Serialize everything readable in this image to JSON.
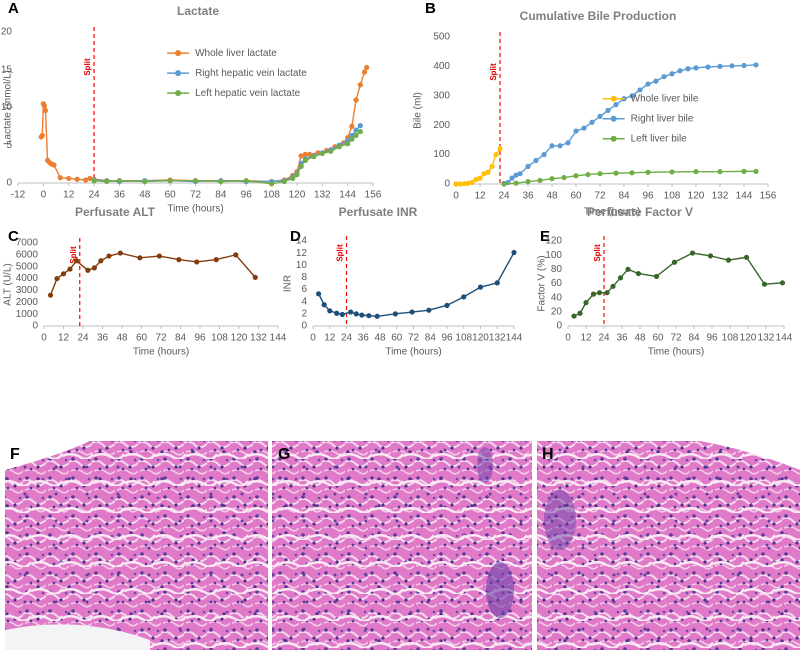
{
  "chart_data": [
    {
      "panel": "A",
      "type": "line",
      "title": "Lactate",
      "xlabel": "Time (hours)",
      "ylabel": "Lactate (mmol/L)",
      "xlim": [
        -12,
        156
      ],
      "xticks": [
        -12,
        0,
        12,
        24,
        36,
        48,
        60,
        72,
        84,
        96,
        108,
        120,
        132,
        144,
        156
      ],
      "ylim": [
        0,
        20
      ],
      "yticks": [
        0,
        5,
        10,
        15,
        20
      ],
      "annotation": "Split",
      "split_x": 24,
      "legend": "upper center",
      "series": [
        {
          "name": "Whole liver lactate",
          "color": "#ED7D31",
          "x": [
            -1,
            -0.5,
            0,
            0.5,
            1,
            2,
            3,
            4,
            5,
            8,
            12,
            16,
            20,
            22,
            24,
            30,
            36,
            48,
            60,
            72,
            84,
            96,
            108,
            114,
            118,
            120,
            122,
            124,
            126,
            130,
            134,
            138,
            142,
            144,
            146,
            148,
            150,
            152,
            153
          ],
          "values": [
            6.1,
            6.3,
            10.5,
            10.2,
            9.6,
            3.0,
            2.7,
            2.5,
            2.4,
            0.7,
            0.6,
            0.5,
            0.4,
            0.6,
            0.5,
            0.3,
            0.3,
            0.3,
            0.4,
            0.3,
            0.3,
            0.3,
            0.2,
            0.4,
            1.0,
            1.5,
            3.6,
            3.8,
            3.8,
            4.0,
            4.3,
            4.8,
            5.3,
            6.0,
            7.5,
            11.0,
            13.0,
            14.7,
            15.3
          ]
        },
        {
          "name": "Right hepatic vein lactate",
          "color": "#5B9BD5",
          "x": [
            24,
            30,
            36,
            48,
            60,
            72,
            84,
            96,
            108,
            114,
            118,
            120,
            122,
            124,
            128,
            132,
            136,
            140,
            144,
            146,
            148,
            150
          ],
          "values": [
            0.4,
            0.3,
            0.2,
            0.3,
            0.3,
            0.2,
            0.3,
            0.2,
            0.2,
            0.3,
            0.8,
            1.2,
            2.6,
            3.2,
            3.6,
            4.0,
            4.4,
            5.0,
            5.6,
            6.3,
            7.0,
            7.6
          ]
        },
        {
          "name": "Left hepatic vein lactate",
          "color": "#70AD47",
          "x": [
            24,
            30,
            36,
            48,
            60,
            72,
            84,
            96,
            108,
            114,
            118,
            120,
            122,
            124,
            128,
            132,
            136,
            140,
            144,
            146,
            148,
            150
          ],
          "values": [
            0.3,
            0.2,
            0.3,
            0.2,
            0.3,
            0.3,
            0.2,
            0.3,
            -0.1,
            0.2,
            0.6,
            1.1,
            2.2,
            3.0,
            3.5,
            3.9,
            4.2,
            4.8,
            5.2,
            5.8,
            6.3,
            6.8
          ]
        }
      ]
    },
    {
      "panel": "B",
      "type": "line",
      "title": "Cumulative Bile Production",
      "xlabel": "Time (hours)",
      "ylabel": "Bile (ml)",
      "xlim": [
        0,
        156
      ],
      "xticks": [
        0,
        12,
        24,
        36,
        48,
        60,
        72,
        84,
        96,
        108,
        120,
        132,
        144,
        156
      ],
      "ylim": [
        0,
        500
      ],
      "yticks": [
        0,
        100,
        200,
        300,
        400,
        500
      ],
      "annotation": "Split",
      "split_x": 22,
      "legend": "center right",
      "series": [
        {
          "name": "Whole liver bile",
          "color": "#FFC000",
          "x": [
            0,
            2,
            4,
            6,
            8,
            10,
            12,
            14,
            16,
            18,
            20,
            22
          ],
          "values": [
            0,
            0,
            1,
            2,
            5,
            15,
            20,
            35,
            40,
            60,
            100,
            120
          ]
        },
        {
          "name": "Right liver bile",
          "color": "#5B9BD5",
          "x": [
            24,
            26,
            28,
            30,
            32,
            36,
            40,
            44,
            48,
            52,
            56,
            60,
            64,
            68,
            72,
            76,
            80,
            84,
            88,
            92,
            96,
            100,
            104,
            108,
            112,
            116,
            120,
            126,
            132,
            138,
            144,
            150
          ],
          "values": [
            2,
            5,
            20,
            30,
            35,
            60,
            80,
            100,
            130,
            130,
            140,
            180,
            190,
            210,
            230,
            250,
            270,
            290,
            300,
            320,
            340,
            350,
            365,
            375,
            385,
            392,
            395,
            398,
            400,
            402,
            403,
            405
          ]
        },
        {
          "name": "Left liver bile",
          "color": "#70AD47",
          "x": [
            24,
            30,
            36,
            42,
            48,
            54,
            60,
            66,
            72,
            80,
            88,
            96,
            108,
            120,
            132,
            144,
            150
          ],
          "values": [
            0,
            3,
            8,
            12,
            18,
            22,
            28,
            32,
            35,
            37,
            38,
            40,
            41,
            42,
            42,
            43,
            43
          ]
        }
      ]
    },
    {
      "panel": "C",
      "type": "line",
      "title": "Perfusate ALT",
      "xlabel": "Time (hours)",
      "ylabel": "ALT (U/L)",
      "xlim": [
        0,
        144
      ],
      "xticks": [
        0,
        12,
        24,
        36,
        48,
        60,
        72,
        84,
        96,
        108,
        120,
        132,
        144
      ],
      "ylim": [
        0,
        7000
      ],
      "yticks": [
        0,
        1000,
        2000,
        3000,
        4000,
        5000,
        6000,
        7000
      ],
      "annotation": "Split",
      "split_x": 22,
      "series": [
        {
          "color": "#843C0C",
          "x": [
            4,
            8,
            12,
            16,
            20,
            27,
            31,
            35,
            40,
            47,
            59,
            71,
            83,
            94,
            106,
            118,
            130
          ],
          "values": [
            2600,
            4000,
            4400,
            4800,
            5500,
            4700,
            4900,
            5500,
            5900,
            6150,
            5750,
            5900,
            5600,
            5400,
            5600,
            6000,
            4100
          ]
        }
      ]
    },
    {
      "panel": "D",
      "type": "line",
      "title": "Perfusate INR",
      "xlabel": "Time (hours)",
      "ylabel": "INR",
      "xlim": [
        0,
        144
      ],
      "xticks": [
        0,
        12,
        24,
        36,
        48,
        60,
        72,
        84,
        96,
        108,
        120,
        132,
        144
      ],
      "ylim": [
        0,
        14
      ],
      "yticks": [
        0,
        2,
        4,
        6,
        8,
        10,
        12,
        14
      ],
      "annotation": "Split",
      "split_x": 24,
      "series": [
        {
          "color": "#1F4E79",
          "x": [
            4,
            8,
            12,
            17,
            21,
            27,
            31,
            35,
            40,
            46,
            59,
            71,
            83,
            96,
            108,
            120,
            132,
            144
          ],
          "values": [
            5.3,
            3.5,
            2.5,
            2.1,
            1.9,
            2.3,
            2.0,
            1.8,
            1.7,
            1.6,
            2.0,
            2.3,
            2.6,
            3.4,
            4.8,
            6.4,
            7.1,
            12.1
          ]
        }
      ]
    },
    {
      "panel": "E",
      "type": "line",
      "title": "Perfusate Factor V",
      "xlabel": "Time (hours)",
      "ylabel": "Factor V (%)",
      "xlim": [
        0,
        144
      ],
      "xticks": [
        0,
        12,
        24,
        36,
        48,
        60,
        72,
        84,
        96,
        108,
        120,
        132,
        144
      ],
      "ylim": [
        0,
        120
      ],
      "yticks": [
        0,
        20,
        40,
        60,
        80,
        100,
        120
      ],
      "annotation": "Split",
      "split_x": 24,
      "series": [
        {
          "color": "#38662A",
          "x": [
            4,
            8,
            12,
            17,
            21,
            26,
            30,
            35,
            40,
            47,
            59,
            71,
            83,
            95,
            107,
            119,
            131,
            143
          ],
          "values": [
            14,
            18,
            33,
            45,
            47,
            47,
            56,
            68,
            80,
            74,
            70,
            90,
            103,
            99,
            93,
            97,
            59,
            61
          ]
        }
      ]
    }
  ],
  "images": [
    {
      "panel": "F"
    },
    {
      "panel": "G"
    },
    {
      "panel": "H"
    }
  ]
}
